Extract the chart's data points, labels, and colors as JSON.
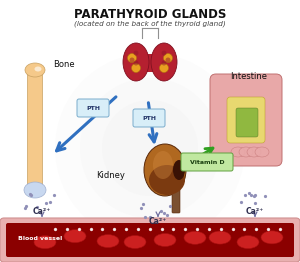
{
  "title": "PARATHYROID GLANDS",
  "subtitle": "(located on the back of the thyroid gland)",
  "bg_color": "#ffffff",
  "title_fontsize": 8.5,
  "subtitle_fontsize": 5.2,
  "labels": {
    "bone": "Bone",
    "intestine": "Intestine",
    "kidney": "Kidney",
    "blood_vessel": "Blood vessel",
    "pth1": "PTH",
    "pth2": "PTH",
    "vitamin_d": "Vitamin D",
    "ca1": "Ca²⁺",
    "ca2": "Ca²⁺",
    "ca3": "Ca²⁺"
  },
  "bone_color_main": "#f5c98a",
  "bone_color_end": "#c8d8f0",
  "thyroid_color": "#b52030",
  "thyroid_spot_color": "#e8a020",
  "kidney_color_top": "#b06820",
  "kidney_color_bot": "#7b3a10",
  "kidney_dark": "#5a2808",
  "intestine_outer": "#e8a8a8",
  "intestine_inner": "#e8d870",
  "intestine_content": "#d0b850",
  "blood_vessel_color": "#8b0000",
  "blood_vessel_border": "#e8b0b0",
  "rbc_color": "#cc2020",
  "arrow_blue": "#3070c0",
  "arrow_green": "#30a020",
  "pth_box_color": "#d8eef8",
  "pth_box_edge": "#7aaccc",
  "vit_d_box_color": "#c0e8a0",
  "vit_d_box_edge": "#60a040",
  "ca_color": "#303050",
  "dot_color": "#9090b8",
  "circle_color": "#e8e8e8"
}
